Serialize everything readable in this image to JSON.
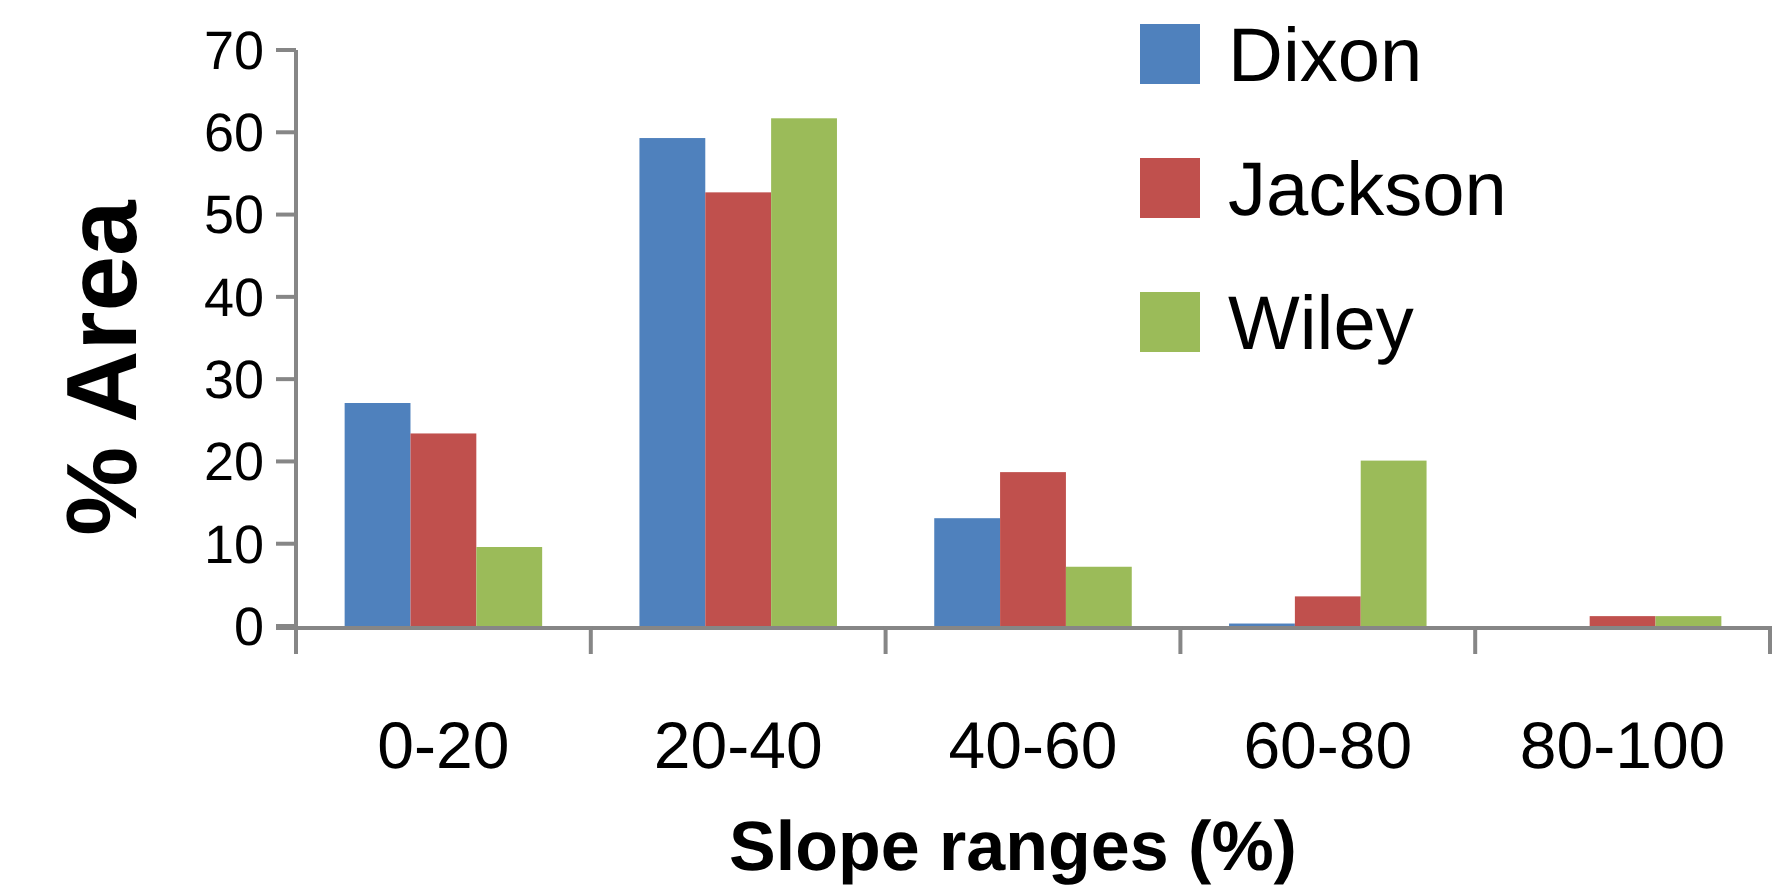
{
  "chart_data": {
    "type": "bar",
    "xlabel": "Slope ranges (%)",
    "ylabel": "% Area",
    "categories": [
      "0-20",
      "20-40",
      "40-60",
      "60-80",
      "80-100"
    ],
    "series": [
      {
        "name": "Dixon",
        "color": "#4f81bd",
        "values": [
          27.1,
          59.3,
          13.1,
          0.3,
          0
        ]
      },
      {
        "name": "Jackson",
        "color": "#c0504d",
        "values": [
          23.4,
          52.7,
          18.7,
          3.6,
          1.2
        ]
      },
      {
        "name": "Wiley",
        "color": "#9bbb59",
        "values": [
          9.6,
          61.7,
          7.2,
          20.1,
          1.2
        ]
      }
    ],
    "ylim": [
      0,
      70
    ],
    "yticks": [
      0,
      10,
      20,
      30,
      40,
      50,
      60,
      70
    ],
    "grid": false,
    "legend": "top right"
  }
}
